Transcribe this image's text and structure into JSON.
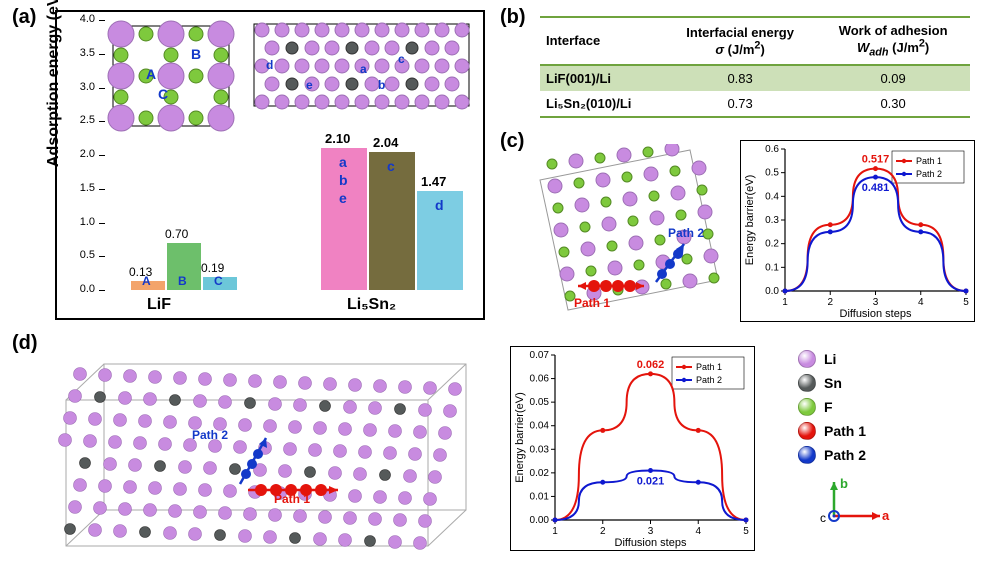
{
  "panel_a": {
    "label": "(a)",
    "y_axis_label": "Adsorption energy (eV)",
    "x_categories": [
      "LiF",
      "Li₅Sn₂"
    ],
    "ylim": [
      0,
      4.0
    ],
    "ytick_step": 0.5,
    "bars_LiF": [
      {
        "label": "A",
        "value": 0.13,
        "value_text": "0.13",
        "color": "#f3a46b"
      },
      {
        "label": "B",
        "value": 0.7,
        "value_text": "0.70",
        "color": "#6dbf6b"
      },
      {
        "label": "C",
        "value": 0.19,
        "value_text": "0.19",
        "color": "#6cc7d9"
      }
    ],
    "bars_LiSn": [
      {
        "label": "a b e",
        "value": 2.1,
        "value_text": "2.10",
        "color": "#f082c2"
      },
      {
        "label": "c",
        "value": 2.04,
        "value_text": "2.04",
        "color": "#756c3e"
      },
      {
        "label": "d",
        "value": 1.47,
        "value_text": "1.47",
        "color": "#7dcde3"
      }
    ],
    "inset_lif_sites": [
      "A",
      "B",
      "C"
    ],
    "inset_lisn_sites": [
      "a",
      "b",
      "c",
      "d",
      "e"
    ],
    "inset_site_color": "#1339c9",
    "inset_lif_title": "LiF",
    "inset_lisn_title": "Li₅Sn₂"
  },
  "panel_b": {
    "label": "(b)",
    "columns": [
      "Interface",
      "Interfacial energy σ (J/m²)",
      "Work of adhesion W₍adh₎ (J/m²)"
    ],
    "col_html": [
      "Interface",
      "Interfacial energy<br><i>σ</i> (J/m<sup>2</sup>)",
      "Work of adhesion<br><i>W<sub>adh</sub></i> (J/m<sup>2</sup>)"
    ],
    "rows": [
      {
        "iface": "LiF(001)/Li",
        "sigma": "0.83",
        "wadh": "0.09",
        "bg": "#cde0b8"
      },
      {
        "iface": "Li₅Sn₂(010)/Li",
        "sigma": "0.73",
        "wadh": "0.30",
        "bg": "#ffffff"
      }
    ],
    "header_border": "#6fa33e"
  },
  "panel_c": {
    "label": "(c)",
    "path1_label": "Path 1",
    "path2_label": "Path 2",
    "chart": {
      "type": "line",
      "x_label": "Diffusion steps",
      "y_label": "Energy barrier(eV)",
      "xticks": [
        1,
        2,
        3,
        4,
        5
      ],
      "ylim": [
        0,
        0.6
      ],
      "ytick_step": 0.1,
      "series": [
        {
          "name": "Path 1",
          "color": "#e4140c",
          "points": [
            0,
            0.28,
            0.517,
            0.28,
            0
          ],
          "peak_text": "0.517"
        },
        {
          "name": "Path 2",
          "color": "#0e18d0",
          "points": [
            0,
            0.25,
            0.481,
            0.25,
            0
          ],
          "peak_text": "0.481"
        }
      ]
    }
  },
  "panel_d": {
    "label": "(d)",
    "path1_label": "Path 1",
    "path2_label": "Path 2",
    "chart": {
      "type": "line",
      "x_label": "Diffusion steps",
      "y_label": "Energy barrier(eV)",
      "xticks": [
        1,
        2,
        3,
        4,
        5
      ],
      "ylim": [
        0,
        0.07
      ],
      "ytick_step": 0.01,
      "series": [
        {
          "name": "Path 1",
          "color": "#e4140c",
          "points": [
            0,
            0.038,
            0.062,
            0.038,
            0
          ],
          "peak_text": "0.062"
        },
        {
          "name": "Path 2",
          "color": "#0e18d0",
          "points": [
            0,
            0.016,
            0.021,
            0.016,
            0
          ],
          "peak_text": "0.021"
        }
      ]
    }
  },
  "legend": {
    "items": [
      {
        "name": "Li",
        "color": "#c88be0",
        "type": "sphere"
      },
      {
        "name": "Sn",
        "color": "#555a5a",
        "type": "sphere"
      },
      {
        "name": "F",
        "color": "#7ec93d",
        "type": "sphere"
      },
      {
        "name": "Path 1",
        "color": "#e4140c",
        "type": "sphere"
      },
      {
        "name": "Path 2",
        "color": "#1339c9",
        "type": "sphere"
      }
    ],
    "axes": {
      "a": "a",
      "b": "b",
      "a_color": "#e4140c",
      "b_color": "#2da82d"
    }
  },
  "colors": {
    "li": "#c88be0",
    "sn": "#555a5a",
    "f": "#7ec93d",
    "path1": "#e4140c",
    "path2": "#1339c9",
    "gridline": "#e0e0e0",
    "axis": "#000"
  }
}
